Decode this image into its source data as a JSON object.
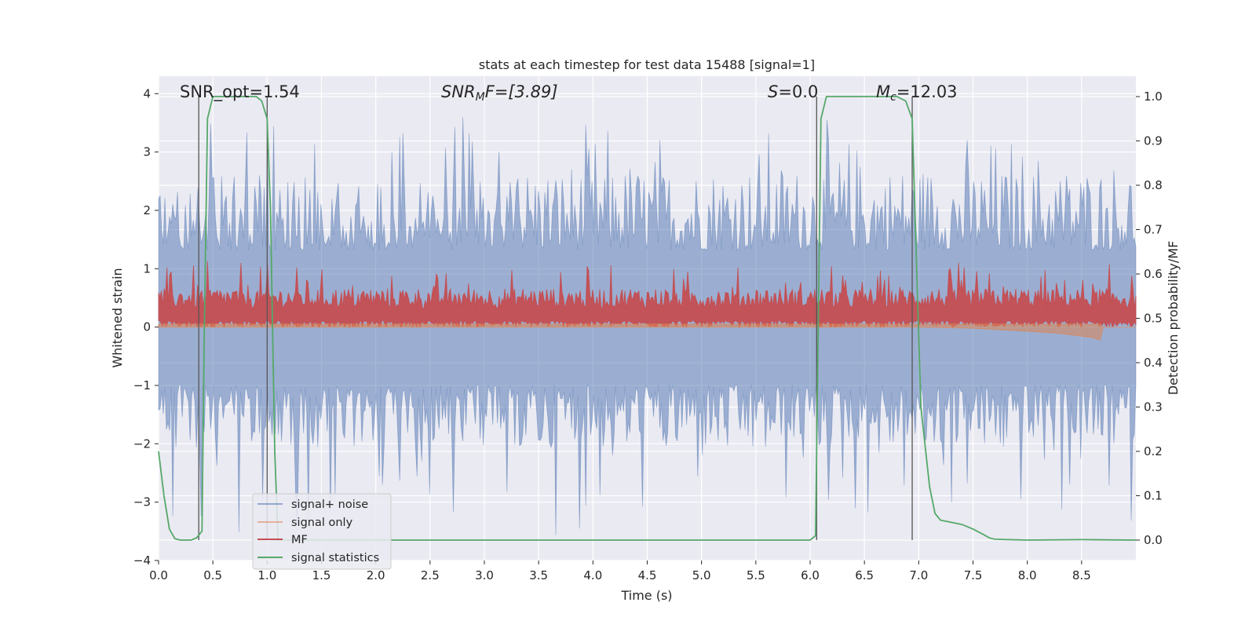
{
  "chart_data": {
    "type": "line",
    "title": "stats at each timestep for test data 15488 [signal=1]",
    "xlabel": "Time (s)",
    "ylabel_left": "Whitened strain",
    "ylabel_right": "Detection probability/MF",
    "xlim": [
      0.0,
      9.0
    ],
    "ylim_left": [
      -4.0,
      4.3
    ],
    "ylim_right": [
      -0.046,
      1.046
    ],
    "xticks": [
      "0.0",
      "0.5",
      "1.0",
      "1.5",
      "2.0",
      "2.5",
      "3.0",
      "3.5",
      "4.0",
      "4.5",
      "5.0",
      "5.5",
      "6.0",
      "6.5",
      "7.0",
      "7.5",
      "8.0",
      "8.5"
    ],
    "yticks_left": [
      "−4",
      "−3",
      "−2",
      "−1",
      "0",
      "1",
      "2",
      "3",
      "4"
    ],
    "yticks_right": [
      "0.0",
      "0.1",
      "0.2",
      "0.3",
      "0.4",
      "0.5",
      "0.6",
      "0.7",
      "0.8",
      "0.9",
      "1.0"
    ],
    "grid": true,
    "legend_placement": "lower-left",
    "annotations": {
      "snr_opt": "SNR_opt=1.54",
      "snr_mf_prefix": "SNR",
      "snr_mf_sub": "M",
      "snr_mf_suffix": "F=[3.89]",
      "s_prefix": "S",
      "s_suffix": "=0.0",
      "mc_prefix": "M",
      "mc_sub": "c",
      "mc_suffix": "=12.03"
    },
    "vertical_markers_x": [
      0.37,
      1.0,
      6.06,
      6.94
    ],
    "series": [
      {
        "name": "signal+ noise",
        "color": "#4c72b0",
        "axis": "left",
        "envelope": {
          "x": [
            0.0,
            9.0
          ],
          "typical_range": [
            -1.8,
            2.4
          ],
          "extremes": [
            -3.6,
            3.6
          ]
        }
      },
      {
        "name": "signal only",
        "color": "#dd8452",
        "axis": "left",
        "x": [
          0.0,
          7.0,
          7.5,
          8.0,
          8.3,
          8.6,
          8.67,
          8.7,
          9.0
        ],
        "y_upper": [
          0.05,
          0.05,
          0.05,
          0.05,
          0.05,
          0.05,
          0.05,
          0.0,
          0.0
        ],
        "y_lower": [
          0.0,
          0.0,
          -0.02,
          -0.07,
          -0.11,
          -0.18,
          -0.22,
          0.0,
          0.0
        ]
      },
      {
        "name": "MF",
        "color": "#c44e52",
        "axis": "right",
        "typical_range": [
          0.5,
          0.57
        ],
        "extremes": [
          0.48,
          0.63
        ]
      },
      {
        "name": "signal statistics",
        "color": "#55a868",
        "axis": "right",
        "x": [
          0.0,
          0.05,
          0.1,
          0.15,
          0.2,
          0.25,
          0.3,
          0.35,
          0.4,
          0.42,
          0.45,
          0.5,
          0.55,
          0.6,
          0.7,
          0.8,
          0.9,
          0.95,
          1.0,
          1.03,
          1.07,
          1.1,
          1.2,
          1.5,
          2.0,
          3.0,
          4.0,
          5.0,
          5.5,
          6.0,
          6.05,
          6.1,
          6.15,
          6.2,
          6.3,
          6.5,
          6.8,
          6.88,
          6.94,
          6.97,
          7.02,
          7.1,
          7.15,
          7.2,
          7.3,
          7.4,
          7.5,
          7.6,
          7.65,
          7.7,
          8.0,
          8.5,
          9.0
        ],
        "y": [
          0.2,
          0.1,
          0.025,
          0.003,
          0.0,
          0.0,
          0.0,
          0.005,
          0.02,
          0.45,
          0.95,
          1.0,
          1.0,
          1.0,
          1.0,
          1.0,
          1.0,
          0.99,
          0.95,
          0.75,
          0.2,
          0.0,
          0.0,
          0.0,
          0.0,
          0.0,
          0.0,
          0.0,
          0.0,
          0.0,
          0.01,
          0.95,
          1.0,
          1.0,
          1.0,
          1.0,
          1.0,
          0.99,
          0.95,
          0.7,
          0.3,
          0.12,
          0.06,
          0.045,
          0.04,
          0.035,
          0.025,
          0.012,
          0.005,
          0.002,
          0.0,
          0.001,
          0.0
        ]
      }
    ]
  }
}
